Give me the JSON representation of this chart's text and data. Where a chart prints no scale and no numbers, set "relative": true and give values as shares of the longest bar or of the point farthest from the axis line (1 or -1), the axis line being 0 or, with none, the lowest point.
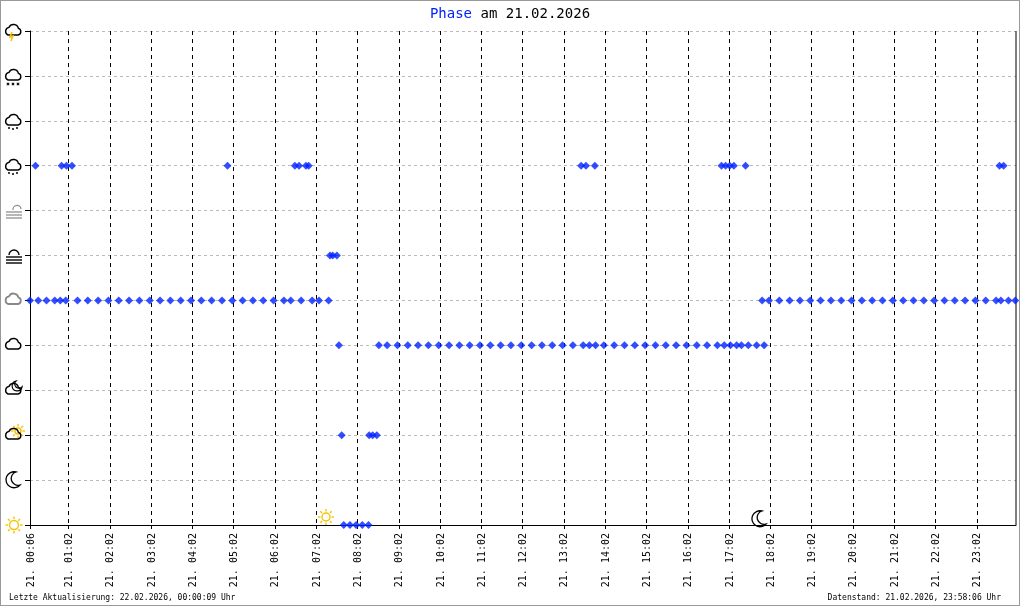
{
  "chart_data": {
    "type": "scatter",
    "title": "Phase am 21.02.2026",
    "annotations": [
      "Letzte Aktualisierung: 22.02.2026, 00:00:09 Uhr",
      "Datenstand: 21.02.2026, 23:58:06 Uhr"
    ],
    "x": [
      "2026-02-21T00:06",
      "2026-02-21T00:14",
      "2026-02-21T00:18",
      "2026-02-21T00:30",
      "2026-02-21T00:42",
      "2026-02-21T00:50",
      "2026-02-21T00:52",
      "2026-02-21T00:58",
      "2026-02-21T00:59",
      "2026-02-21T01:07",
      "2026-02-21T01:15",
      "2026-02-21T01:30",
      "2026-02-21T01:45",
      "2026-02-21T02:00",
      "2026-02-21T02:15",
      "2026-02-21T02:30",
      "2026-02-21T02:45",
      "2026-02-21T03:00",
      "2026-02-21T03:15",
      "2026-02-21T03:30",
      "2026-02-21T03:45",
      "2026-02-21T04:00",
      "2026-02-21T04:15",
      "2026-02-21T04:30",
      "2026-02-21T04:45",
      "2026-02-21T04:53",
      "2026-02-21T05:00",
      "2026-02-21T05:15",
      "2026-02-21T05:30",
      "2026-02-21T05:45",
      "2026-02-21T06:00",
      "2026-02-21T06:15",
      "2026-02-21T06:25",
      "2026-02-21T06:31",
      "2026-02-21T06:37",
      "2026-02-21T06:40",
      "2026-02-21T06:47",
      "2026-02-21T06:51",
      "2026-02-21T06:56",
      "2026-02-21T07:06",
      "2026-02-21T07:20",
      "2026-02-21T07:22",
      "2026-02-21T07:26",
      "2026-02-21T07:32",
      "2026-02-21T07:35",
      "2026-02-21T07:39",
      "2026-02-21T07:42",
      "2026-02-21T07:51",
      "2026-02-21T08:00",
      "2026-02-21T08:09",
      "2026-02-21T08:18",
      "2026-02-21T08:19",
      "2026-02-21T08:24",
      "2026-02-21T08:30",
      "2026-02-21T08:33",
      "2026-02-21T08:45",
      "2026-02-21T09:00",
      "2026-02-21T09:15",
      "2026-02-21T09:30",
      "2026-02-21T09:45",
      "2026-02-21T10:00",
      "2026-02-21T10:15",
      "2026-02-21T10:30",
      "2026-02-21T10:45",
      "2026-02-21T11:00",
      "2026-02-21T11:15",
      "2026-02-21T11:30",
      "2026-02-21T11:45",
      "2026-02-21T12:00",
      "2026-02-21T12:15",
      "2026-02-21T12:30",
      "2026-02-21T12:45",
      "2026-02-21T13:00",
      "2026-02-21T13:15",
      "2026-02-21T13:27",
      "2026-02-21T13:30",
      "2026-02-21T13:34",
      "2026-02-21T13:39",
      "2026-02-21T13:47",
      "2026-02-21T13:48",
      "2026-02-21T14:00",
      "2026-02-21T14:15",
      "2026-02-21T14:30",
      "2026-02-21T14:45",
      "2026-02-21T15:00",
      "2026-02-21T15:15",
      "2026-02-21T15:30",
      "2026-02-21T15:45",
      "2026-02-21T16:00",
      "2026-02-21T16:15",
      "2026-02-21T16:30",
      "2026-02-21T16:45",
      "2026-02-21T16:51",
      "2026-02-21T16:55",
      "2026-02-21T16:57",
      "2026-02-21T17:03",
      "2026-02-21T17:04",
      "2026-02-21T17:09",
      "2026-02-21T17:13",
      "2026-02-21T17:20",
      "2026-02-21T17:26",
      "2026-02-21T17:30",
      "2026-02-21T17:42",
      "2026-02-21T17:50",
      "2026-02-21T17:53",
      "2026-02-21T18:00",
      "2026-02-21T18:15",
      "2026-02-21T18:30",
      "2026-02-21T18:45",
      "2026-02-21T19:00",
      "2026-02-21T19:15",
      "2026-02-21T19:30",
      "2026-02-21T19:45",
      "2026-02-21T20:00",
      "2026-02-21T20:15",
      "2026-02-21T20:30",
      "2026-02-21T20:45",
      "2026-02-21T21:00",
      "2026-02-21T21:15",
      "2026-02-21T21:30",
      "2026-02-21T21:45",
      "2026-02-21T22:00",
      "2026-02-21T22:15",
      "2026-02-21T22:30",
      "2026-02-21T22:45",
      "2026-02-21T23:00",
      "2026-02-21T23:15",
      "2026-02-21T23:30",
      "2026-02-21T23:35",
      "2026-02-21T23:37",
      "2026-02-21T23:41",
      "2026-02-21T23:48",
      "2026-02-21T23:58"
    ],
    "values": [
      0.625,
      1,
      0.625,
      0.625,
      0.625,
      0.625,
      1,
      0.625,
      1,
      1,
      0.625,
      0.625,
      0.625,
      0.625,
      0.625,
      0.625,
      0.625,
      0.625,
      0.625,
      0.625,
      0.625,
      0.625,
      0.625,
      0.625,
      0.625,
      1,
      0.625,
      0.625,
      0.625,
      0.625,
      0.625,
      0.625,
      0.625,
      1,
      1,
      0.625,
      1,
      1,
      0.625,
      0.625,
      0.625,
      0.75,
      0.75,
      0.75,
      0.5,
      0.25,
      0,
      0,
      0,
      0,
      0,
      0.25,
      0.25,
      0.25,
      0.5,
      0.5,
      0.5,
      0.5,
      0.5,
      0.5,
      0.5,
      0.5,
      0.5,
      0.5,
      0.5,
      0.5,
      0.5,
      0.5,
      0.5,
      0.5,
      0.5,
      0.5,
      0.5,
      0.5,
      1,
      0.5,
      1,
      0.5,
      1,
      0.5,
      0.5,
      0.5,
      0.5,
      0.5,
      0.5,
      0.5,
      0.5,
      0.5,
      0.5,
      0.5,
      0.5,
      0.5,
      1,
      0.5,
      1,
      1,
      0.5,
      1,
      0.5,
      0.5,
      1,
      0.5,
      0.5,
      0.625,
      0.5,
      0.625,
      0.625,
      0.625,
      0.625,
      0.625,
      0.625,
      0.625,
      0.625,
      0.625,
      0.625,
      0.625,
      0.625,
      0.625,
      0.625,
      0.625,
      0.625,
      0.625,
      0.625,
      0.625,
      0.625,
      0.625,
      0.625,
      0.625,
      1,
      0.625,
      1,
      0.625,
      0.625
    ],
    "relative": true,
    "color": "#0022ff",
    "marker": "diamond",
    "grid": true,
    "xlim": [
      "2026-02-21T00:06",
      "2026-02-21T23:59"
    ],
    "xticks": [
      {
        "value": "2026-02-21T00:06",
        "label": "21. 00:06"
      },
      {
        "value": "2026-02-21T01:02",
        "label": "21. 01:02"
      },
      {
        "value": "2026-02-21T02:02",
        "label": "21. 02:02"
      },
      {
        "value": "2026-02-21T03:02",
        "label": "21. 03:02"
      },
      {
        "value": "2026-02-21T04:02",
        "label": "21. 04:02"
      },
      {
        "value": "2026-02-21T05:02",
        "label": "21. 05:02"
      },
      {
        "value": "2026-02-21T06:02",
        "label": "21. 06:02"
      },
      {
        "value": "2026-02-21T07:02",
        "label": "21. 07:02"
      },
      {
        "value": "2026-02-21T08:02",
        "label": "21. 08:02"
      },
      {
        "value": "2026-02-21T09:02",
        "label": "21. 09:02"
      },
      {
        "value": "2026-02-21T10:02",
        "label": "21. 10:02"
      },
      {
        "value": "2026-02-21T11:02",
        "label": "21. 11:02"
      },
      {
        "value": "2026-02-21T12:02",
        "label": "21. 12:02"
      },
      {
        "value": "2026-02-21T13:02",
        "label": "21. 13:02"
      },
      {
        "value": "2026-02-21T14:02",
        "label": "21. 14:02"
      },
      {
        "value": "2026-02-21T15:02",
        "label": "21. 15:02"
      },
      {
        "value": "2026-02-21T16:02",
        "label": "21. 16:02"
      },
      {
        "value": "2026-02-21T17:02",
        "label": "21. 17:02"
      },
      {
        "value": "2026-02-21T18:02",
        "label": "21. 18:02"
      },
      {
        "value": "2026-02-21T19:02",
        "label": "21. 19:02"
      },
      {
        "value": "2026-02-21T20:02",
        "label": "21. 20:02"
      },
      {
        "value": "2026-02-21T21:02",
        "label": "21. 21:02"
      },
      {
        "value": "2026-02-21T22:02",
        "label": "21. 22:02"
      },
      {
        "value": "2026-02-21T23:02",
        "label": "21. 23:02"
      }
    ],
    "tick_labels": "x"
  }
}
